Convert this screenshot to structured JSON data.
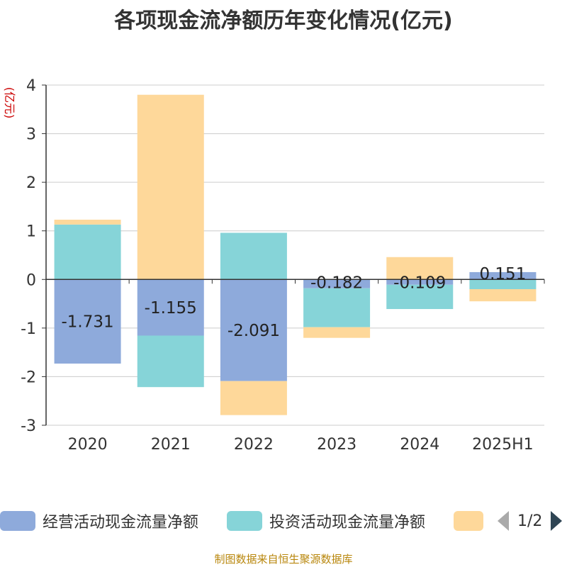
{
  "title": "各项现金流净额历年变化情况(亿元)",
  "source_note": "制图数据来自恒生聚源数据库",
  "legend": {
    "items": [
      "经营活动现金流量净额",
      "投资活动现金流量净额",
      ""
    ],
    "pager": "1/2"
  },
  "colors": {
    "operating": "#8eaadb",
    "investing": "#86d4d8",
    "third": "#fed89a",
    "ylabel": "#cc0000"
  },
  "chart_data": {
    "type": "bar",
    "stacked": true,
    "ylabel": "(亿元)",
    "ylim": [
      -3,
      4
    ],
    "yticks": [
      -3,
      -2,
      -1,
      0,
      1,
      2,
      3,
      4
    ],
    "grid": true,
    "legend_position": "bottom",
    "categories": [
      "2020",
      "2021",
      "2022",
      "2023",
      "2024",
      "2025H1"
    ],
    "series": [
      {
        "name": "经营活动现金流量净额",
        "values": [
          -1.731,
          -1.155,
          -2.091,
          -0.182,
          -0.109,
          0.151
        ]
      },
      {
        "name": "投资活动现金流量净额",
        "values": [
          1.13,
          -1.06,
          0.96,
          -0.8,
          -0.5,
          -0.2
        ]
      },
      {
        "values": [
          0.1,
          3.8,
          -0.7,
          -0.22,
          0.46,
          -0.25
        ]
      }
    ],
    "data_labels": [
      "-1.731",
      "-1.155",
      "-2.091",
      "-0.182",
      "-0.109",
      "0.151"
    ]
  }
}
